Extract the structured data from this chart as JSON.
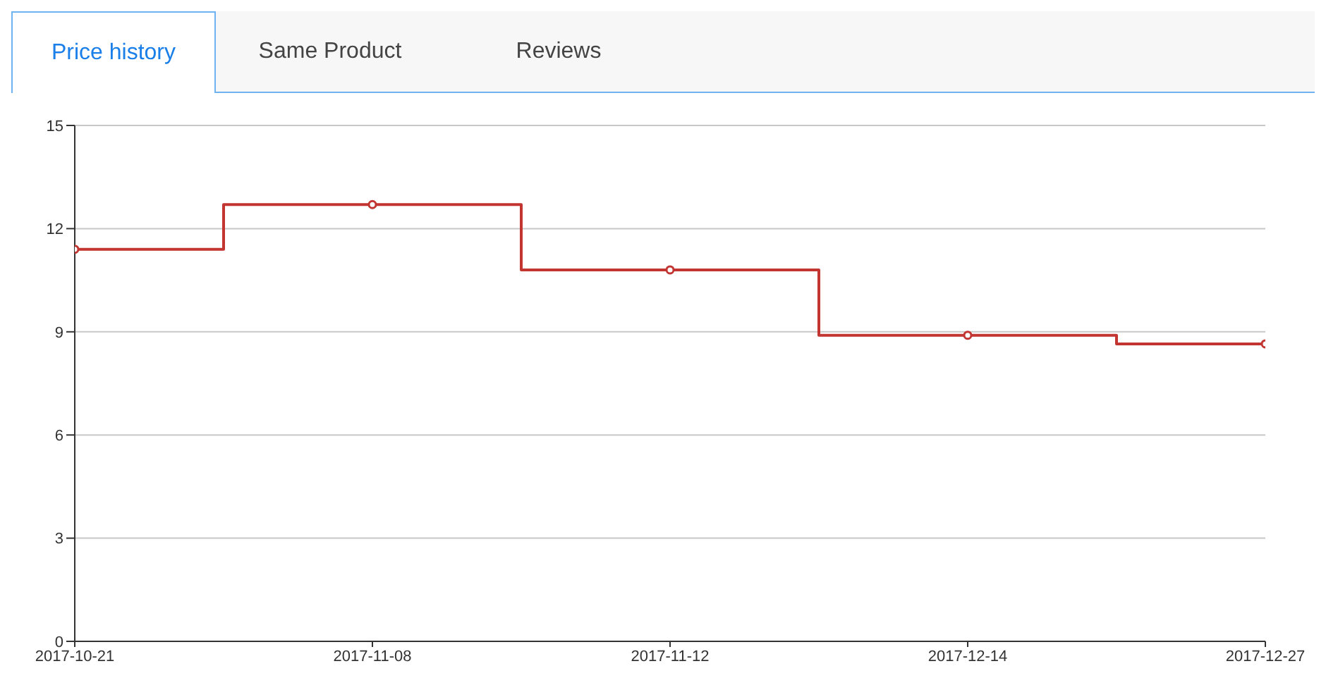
{
  "chart_data": {
    "type": "step",
    "categories": [
      "2017-10-21",
      "2017-11-08",
      "2017-11-12",
      "2017-12-14",
      "2017-12-27"
    ],
    "series": [
      {
        "color": "#c23531",
        "values": [
          11.4,
          12.7,
          10.8,
          8.9,
          8.65
        ]
      }
    ],
    "ylim": [
      0,
      15
    ],
    "yticks": [
      0,
      3,
      6,
      9,
      12,
      15
    ],
    "grid": "y",
    "marker": "circle",
    "legend": false,
    "annotations": [
      "Price history",
      "Same Product",
      "Reviews"
    ]
  }
}
